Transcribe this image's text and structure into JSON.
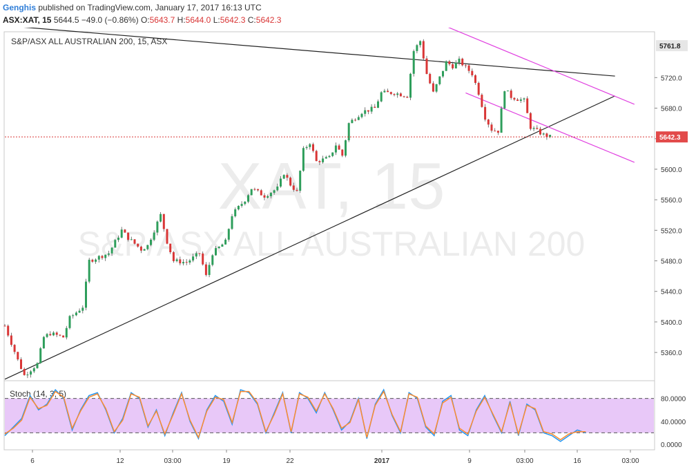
{
  "header": {
    "author": "Genghis",
    "published_text": " published on TradingView.com, January 17, 2017 16:13 UTC",
    "symbol": "ASX:XAT, 15",
    "last": "5644.5",
    "change": "−49.0 (−0.86%)",
    "o_label": "O:",
    "o_val": "5643.7",
    "h_label": "H:",
    "h_val": "5644.0",
    "l_label": "L:",
    "l_val": "5642.3",
    "c_label": "C:",
    "c_val": "5642.3"
  },
  "chart_data": [
    {
      "type": "candlestick",
      "title": "S&P/ASX ALL AUSTRALIAN 200, 15, ASX",
      "watermark": "XAT, 15",
      "watermark_sub": "S&P/ASX ALL AUSTRALIAN 200",
      "ylim": [
        5323,
        5780
      ],
      "y_ticks": [
        "5720.0",
        "5680.0",
        "5640.0",
        "5600.0",
        "5560.0",
        "5520.0",
        "5480.0",
        "5440.0",
        "5400.0",
        "5360.0"
      ],
      "x_ticks": [
        "6",
        "12",
        "03:00",
        "19",
        "22",
        "2017",
        "9",
        "03:00",
        "16",
        "03:00"
      ],
      "price_badges": [
        {
          "label": "5761.8",
          "value": 5761.8,
          "color": "#e6e6e6",
          "text_color": "#222"
        },
        {
          "label": "5642.3",
          "value": 5642.3,
          "color": "#e24a4a",
          "text_color": "#ffffff"
        }
      ],
      "close_path": [
        [
          0,
          5395
        ],
        [
          2,
          5350
        ],
        [
          3,
          5330
        ],
        [
          5,
          5345
        ],
        [
          6,
          5380
        ],
        [
          7,
          5385
        ],
        [
          9,
          5380
        ],
        [
          10,
          5405
        ],
        [
          12,
          5420
        ],
        [
          13,
          5480
        ],
        [
          16,
          5490
        ],
        [
          18,
          5520
        ],
        [
          19,
          5510
        ],
        [
          21,
          5495
        ],
        [
          22,
          5500
        ],
        [
          24,
          5540
        ],
        [
          25,
          5505
        ],
        [
          26,
          5480
        ],
        [
          28,
          5478
        ],
        [
          30,
          5490
        ],
        [
          31,
          5460
        ],
        [
          32,
          5490
        ],
        [
          34,
          5505
        ],
        [
          35,
          5540
        ],
        [
          37,
          5560
        ],
        [
          38,
          5575
        ],
        [
          40,
          5565
        ],
        [
          42,
          5575
        ],
        [
          43,
          5595
        ],
        [
          44,
          5580
        ],
        [
          45,
          5570
        ],
        [
          46,
          5625
        ],
        [
          47,
          5635
        ],
        [
          48,
          5610
        ],
        [
          50,
          5615
        ],
        [
          51,
          5632
        ],
        [
          52,
          5618
        ],
        [
          53,
          5660
        ],
        [
          55,
          5675
        ],
        [
          57,
          5680
        ],
        [
          58,
          5700
        ],
        [
          60,
          5700
        ],
        [
          62,
          5696
        ],
        [
          63,
          5755
        ],
        [
          64,
          5768
        ],
        [
          65,
          5725
        ],
        [
          66,
          5700
        ],
        [
          67,
          5720
        ],
        [
          68,
          5740
        ],
        [
          69,
          5735
        ],
        [
          70,
          5742
        ],
        [
          72,
          5725
        ],
        [
          73,
          5700
        ],
        [
          74,
          5668
        ],
        [
          75,
          5652
        ],
        [
          76,
          5650
        ],
        [
          77,
          5705
        ],
        [
          78,
          5695
        ],
        [
          79,
          5692
        ],
        [
          80,
          5690
        ],
        [
          81,
          5655
        ],
        [
          82,
          5650
        ],
        [
          83,
          5645
        ],
        [
          84,
          5642.3
        ]
      ],
      "lines": [
        {
          "from": [
            0,
            5788
          ],
          "to": [
            94,
            5722
          ],
          "color": "#222"
        },
        {
          "from": [
            0,
            5325
          ],
          "to": [
            94,
            5696
          ],
          "color": "#222"
        },
        {
          "from": [
            68,
            5787
          ],
          "to": [
            97,
            5685
          ],
          "color": "#e040e0"
        },
        {
          "from": [
            71,
            5700
          ],
          "to": [
            97,
            5609
          ],
          "color": "#e040e0"
        }
      ],
      "last_price": 5642.3
    },
    {
      "type": "line",
      "title": "Stoch (14, 3, 5)",
      "ylim": [
        0,
        100
      ],
      "y_ticks": [
        "80.0000",
        "40.0000",
        "0.0000"
      ],
      "band": [
        20,
        80
      ],
      "series": [
        {
          "color": "#2196f3",
          "values": [
            15,
            30,
            45,
            85,
            60,
            70,
            95,
            80,
            25,
            60,
            85,
            90,
            60,
            20,
            45,
            90,
            80,
            30,
            60,
            15,
            55,
            90,
            40,
            10,
            60,
            85,
            75,
            35,
            95,
            90,
            70,
            20,
            55,
            90,
            20,
            90,
            80,
            55,
            90,
            60,
            25,
            40,
            80,
            10,
            70,
            95,
            50,
            20,
            90,
            80,
            30,
            15,
            75,
            85,
            25,
            15,
            60,
            85,
            50,
            20,
            75,
            15,
            70,
            60,
            20,
            15,
            5,
            15,
            25,
            20
          ]
        },
        {
          "color": "#ff8c2e",
          "values": [
            18,
            28,
            42,
            82,
            62,
            68,
            92,
            82,
            28,
            58,
            82,
            88,
            62,
            22,
            42,
            88,
            82,
            32,
            58,
            18,
            52,
            88,
            42,
            12,
            58,
            82,
            78,
            38,
            92,
            92,
            72,
            22,
            52,
            88,
            22,
            88,
            82,
            58,
            88,
            62,
            28,
            38,
            78,
            12,
            68,
            92,
            52,
            22,
            88,
            82,
            32,
            18,
            72,
            82,
            28,
            18,
            58,
            82,
            52,
            22,
            72,
            18,
            68,
            62,
            22,
            18,
            8,
            18,
            22,
            22
          ]
        }
      ]
    }
  ]
}
